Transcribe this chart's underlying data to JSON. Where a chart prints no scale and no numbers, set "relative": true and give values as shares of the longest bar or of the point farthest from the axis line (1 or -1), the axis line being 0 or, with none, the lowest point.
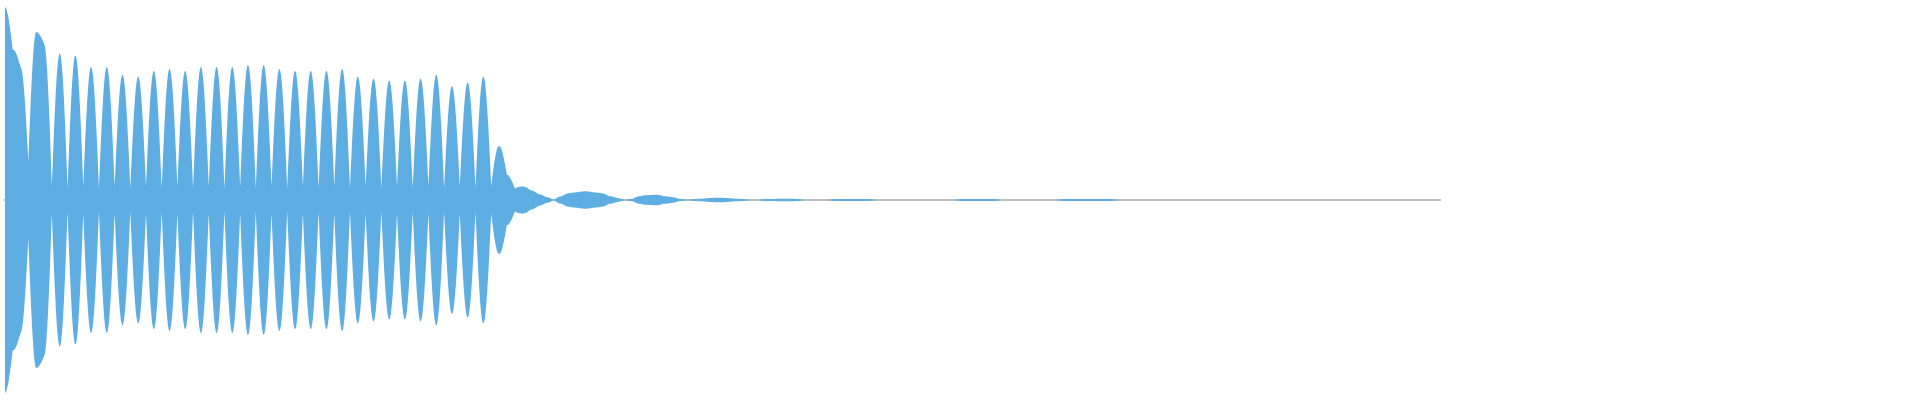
{
  "chart_data": {
    "type": "area",
    "relative": true,
    "categories": [
      null,
      null,
      null,
      null,
      null,
      null,
      null,
      null,
      null,
      null,
      null,
      null,
      null,
      null,
      null,
      null,
      null,
      null,
      null,
      null,
      null,
      null,
      null,
      null,
      null,
      null,
      null,
      null,
      null,
      null,
      null,
      null,
      null,
      null,
      null,
      null,
      null,
      null,
      null,
      null,
      null,
      null,
      null,
      null,
      null,
      null,
      null,
      null,
      null,
      null,
      null,
      null,
      null,
      null,
      null,
      null,
      null,
      null,
      null,
      null,
      null,
      null,
      null,
      null,
      null,
      null,
      null,
      null,
      null,
      null,
      null,
      null,
      null,
      null,
      null,
      null,
      null,
      null,
      null,
      null,
      null,
      null,
      null,
      null,
      null,
      null,
      null,
      null,
      null,
      null,
      null,
      null,
      null,
      null,
      null,
      null,
      null,
      null,
      null,
      null,
      null,
      null,
      null,
      null,
      null,
      null,
      null,
      null,
      null,
      null,
      null,
      null,
      null,
      null,
      null,
      null,
      null,
      null,
      null,
      null,
      null,
      null,
      null,
      null,
      null,
      null,
      null,
      null,
      null,
      null,
      null,
      null,
      null,
      null,
      null,
      null,
      null,
      null,
      null,
      null,
      null,
      null,
      null,
      null,
      null,
      null,
      null,
      null,
      null,
      null,
      null,
      null,
      null,
      null,
      null,
      null,
      null,
      null,
      null,
      null,
      null,
      null,
      null,
      null,
      null,
      null,
      null,
      null,
      null,
      null,
      null,
      null,
      null,
      null,
      null,
      null,
      null,
      null,
      null,
      null,
      null,
      null,
      null,
      null
    ],
    "series": [
      {
        "color": "#5dade2",
        "values": [
          1.0,
          0.78,
          0.69,
          0.2,
          0.87,
          0.81,
          0.07,
          0.76,
          0.06,
          0.75,
          0.07,
          0.69,
          0.06,
          0.69,
          0.07,
          0.65,
          0.06,
          0.64,
          0.07,
          0.67,
          0.06,
          0.68,
          0.07,
          0.67,
          0.06,
          0.69,
          0.07,
          0.69,
          0.06,
          0.69,
          0.07,
          0.7,
          0.06,
          0.7,
          0.07,
          0.68,
          0.06,
          0.67,
          0.07,
          0.67,
          0.06,
          0.67,
          0.07,
          0.68,
          0.06,
          0.64,
          0.07,
          0.63,
          0.06,
          0.62,
          0.07,
          0.62,
          0.06,
          0.63,
          0.07,
          0.65,
          0.06,
          0.59,
          0.07,
          0.61,
          0.06,
          0.64,
          0.07,
          0.28,
          0.13,
          0.06,
          0.07,
          0.05,
          0.03,
          0.015,
          0,
          0.02,
          0.035,
          0.04,
          0.045,
          0.04,
          0.035,
          0.02,
          0.01,
          0,
          0.005,
          0.02,
          0.025,
          0.027,
          0.02,
          0.015,
          0.005,
          0,
          0.005,
          0.007,
          0.01,
          0.012,
          0.01,
          0.007,
          0.005,
          0,
          0,
          0.005,
          0.005,
          0.007,
          0.007,
          0.005,
          0,
          0,
          0,
          0,
          0.005,
          0.005,
          0.005,
          0.005,
          0.005,
          0,
          0,
          0,
          0,
          0,
          0,
          0,
          0,
          0,
          0,
          0,
          0.005,
          0.005,
          0.005,
          0.005,
          0.005,
          0,
          0,
          0,
          0,
          0,
          0,
          0,
          0,
          0.005,
          0.005,
          0.005,
          0.005,
          0.005,
          0.005,
          0.005,
          0,
          0,
          0,
          0,
          0,
          0,
          0,
          0,
          0,
          0,
          0,
          0,
          0,
          0,
          0,
          0,
          0,
          0,
          0,
          0,
          0,
          0,
          0,
          0,
          0,
          0,
          0,
          0,
          0,
          0,
          0,
          0,
          0,
          0,
          0,
          0,
          0,
          0,
          0,
          0,
          0,
          0
        ]
      },
      {
        "color": "#5eaee3",
        "values": [
          -1.0,
          -0.78,
          -0.69,
          -0.2,
          -0.87,
          -0.81,
          -0.07,
          -0.76,
          -0.06,
          -0.75,
          -0.07,
          -0.69,
          -0.06,
          -0.69,
          -0.07,
          -0.65,
          -0.06,
          -0.64,
          -0.07,
          -0.67,
          -0.06,
          -0.68,
          -0.07,
          -0.67,
          -0.06,
          -0.69,
          -0.07,
          -0.69,
          -0.06,
          -0.69,
          -0.07,
          -0.7,
          -0.06,
          -0.7,
          -0.07,
          -0.68,
          -0.06,
          -0.67,
          -0.07,
          -0.67,
          -0.06,
          -0.67,
          -0.07,
          -0.68,
          -0.06,
          -0.64,
          -0.07,
          -0.63,
          -0.06,
          -0.62,
          -0.07,
          -0.62,
          -0.06,
          -0.63,
          -0.07,
          -0.65,
          -0.06,
          -0.59,
          -0.07,
          -0.61,
          -0.06,
          -0.64,
          -0.07,
          -0.28,
          -0.13,
          -0.06,
          -0.07,
          -0.05,
          -0.03,
          -0.015,
          0,
          -0.02,
          -0.035,
          -0.04,
          -0.045,
          -0.04,
          -0.035,
          -0.02,
          -0.01,
          0,
          -0.005,
          -0.02,
          -0.025,
          -0.027,
          -0.02,
          -0.015,
          -0.005,
          0,
          -0.005,
          -0.007,
          -0.01,
          -0.012,
          -0.01,
          -0.007,
          -0.005,
          0,
          0,
          -0.005,
          -0.005,
          -0.007,
          -0.007,
          -0.005,
          0,
          0,
          0,
          0,
          -0.005,
          -0.005,
          -0.005,
          -0.005,
          -0.005,
          0,
          0,
          0,
          0,
          0,
          0,
          0,
          0,
          0,
          0,
          0,
          -0.005,
          -0.005,
          -0.005,
          -0.005,
          -0.005,
          0,
          0,
          0,
          0,
          0,
          0,
          0,
          0,
          -0.005,
          -0.005,
          -0.005,
          -0.005,
          -0.005,
          -0.005,
          -0.005,
          0,
          0,
          0,
          0,
          0,
          0,
          0,
          0,
          0,
          0,
          0,
          0,
          0,
          0,
          0,
          0,
          0,
          0,
          0,
          0,
          0,
          0,
          0,
          0,
          0,
          0,
          0,
          0,
          0,
          0,
          0,
          0,
          0,
          0,
          0,
          0,
          0,
          0,
          0,
          0,
          0,
          0
        ]
      }
    ]
  }
}
